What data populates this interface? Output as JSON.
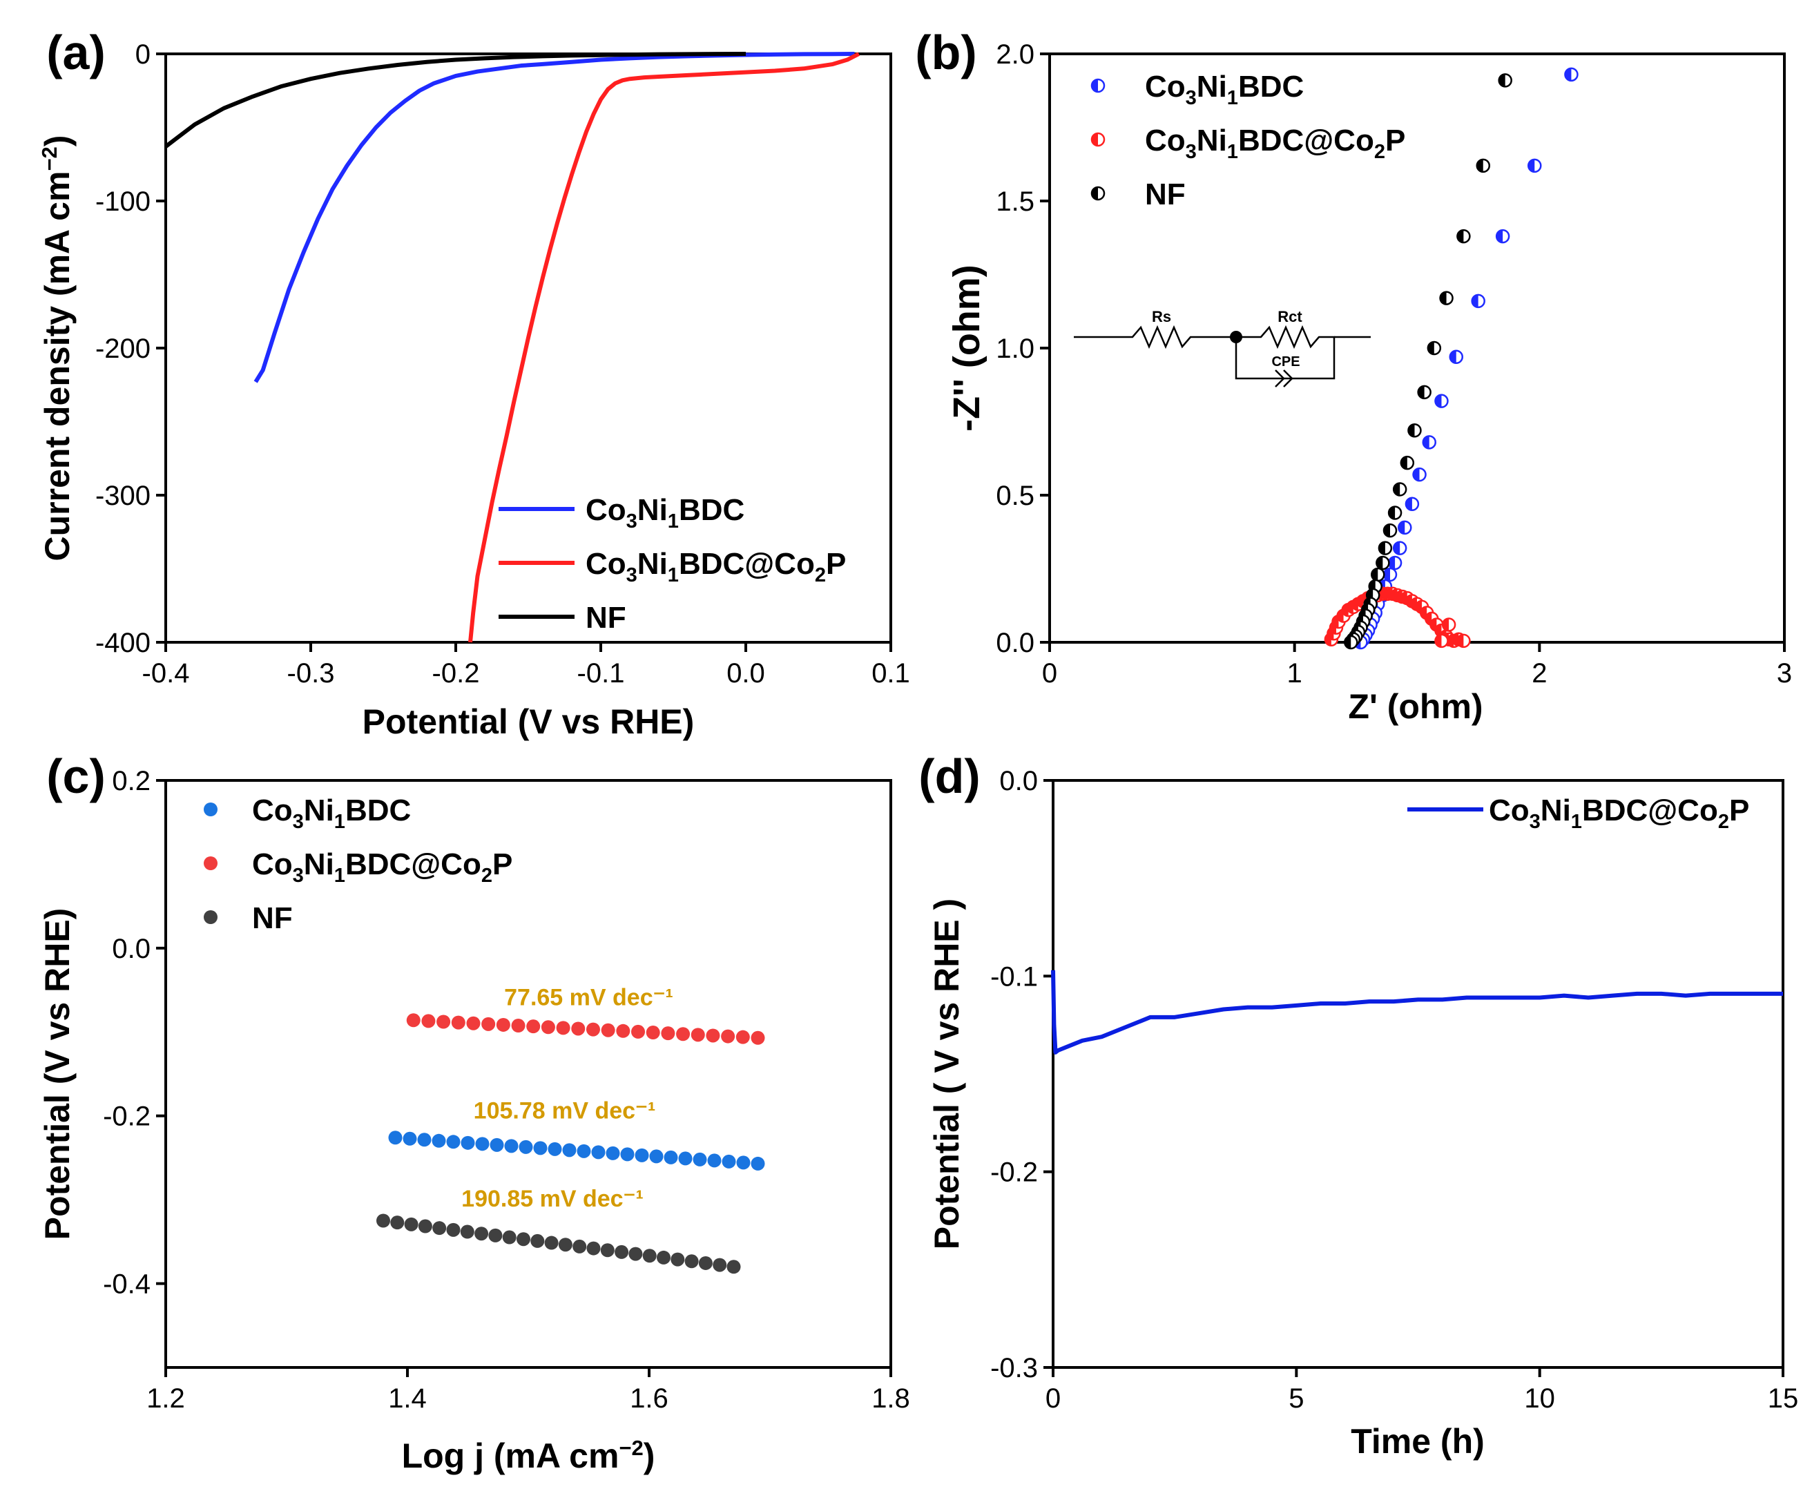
{
  "colors": {
    "blue": "#1f2bff",
    "red": "#ff2020",
    "black": "#000000",
    "tafel_blue": "#1a75e0",
    "tafel_red": "#f03c3c",
    "tafel_gray": "#404040",
    "annotation_gold": "#d49a00",
    "stability_blue": "#0a1fe0"
  },
  "chart_data": [
    {
      "panel_label": "(a)",
      "type": "line",
      "xlabel": "Potential (V vs RHE)",
      "ylabel": "Current density (mA cm⁻²)",
      "xlim": [
        -0.4,
        0.1
      ],
      "ylim": [
        -400,
        0
      ],
      "xticks": [
        "-0.4",
        "-0.3",
        "-0.2",
        "-0.1",
        "0.0",
        "0.1"
      ],
      "yticks": [
        "0",
        "-100",
        "-200",
        "-300",
        "-400"
      ],
      "legend_position": "bottom-right",
      "legend": [
        "Co3Ni1BDC",
        "Co3Ni1BDC@Co2P",
        "NF"
      ],
      "series": [
        {
          "name": "Co3Ni1BDC",
          "color_key": "blue",
          "x": [
            -0.338,
            -0.333,
            -0.325,
            -0.315,
            -0.305,
            -0.295,
            -0.285,
            -0.275,
            -0.265,
            -0.255,
            -0.245,
            -0.235,
            -0.225,
            -0.215,
            -0.2,
            -0.185,
            -0.17,
            -0.155,
            -0.14,
            -0.12,
            -0.1,
            -0.08,
            -0.06,
            -0.04,
            -0.02,
            0.0,
            0.02,
            0.04,
            0.06,
            0.075
          ],
          "y": [
            -223,
            -215,
            -190,
            -160,
            -135,
            -112,
            -92,
            -76,
            -62,
            -50,
            -40,
            -32,
            -25,
            -20,
            -15,
            -12,
            -10,
            -8,
            -7,
            -5.5,
            -4,
            -3,
            -2.2,
            -1.6,
            -1.1,
            -0.7,
            -0.4,
            -0.2,
            -0.1,
            0
          ]
        },
        {
          "name": "Co3Ni1BDC@Co2P",
          "color_key": "red",
          "x": [
            -0.19,
            -0.188,
            -0.185,
            -0.18,
            -0.175,
            -0.17,
            -0.165,
            -0.16,
            -0.155,
            -0.15,
            -0.145,
            -0.14,
            -0.135,
            -0.13,
            -0.125,
            -0.12,
            -0.115,
            -0.11,
            -0.105,
            -0.1,
            -0.095,
            -0.09,
            -0.085,
            -0.08,
            -0.07,
            -0.06,
            -0.04,
            -0.02,
            0.0,
            0.02,
            0.04,
            0.06,
            0.07,
            0.078
          ],
          "y": [
            -400,
            -380,
            -355,
            -330,
            -305,
            -282,
            -260,
            -237,
            -215,
            -193,
            -172,
            -152,
            -133,
            -115,
            -98,
            -82,
            -67,
            -53,
            -41,
            -31,
            -24,
            -20,
            -18,
            -17,
            -16,
            -15.5,
            -14.5,
            -13.5,
            -12.5,
            -11.5,
            -10,
            -7,
            -4,
            0
          ]
        },
        {
          "name": "NF",
          "color_key": "black",
          "x": [
            -0.4,
            -0.38,
            -0.36,
            -0.34,
            -0.32,
            -0.3,
            -0.28,
            -0.26,
            -0.24,
            -0.22,
            -0.2,
            -0.18,
            -0.16,
            -0.14,
            -0.12,
            -0.1,
            -0.08,
            -0.06,
            -0.04,
            -0.02,
            0.0
          ],
          "y": [
            -63,
            -48,
            -37,
            -29,
            -22,
            -17,
            -13,
            -10,
            -7.5,
            -5.5,
            -4,
            -3,
            -2.2,
            -1.6,
            -1.1,
            -0.8,
            -0.5,
            -0.3,
            -0.15,
            -0.05,
            0
          ]
        }
      ]
    },
    {
      "panel_label": "(b)",
      "type": "scatter",
      "xlabel": "Z' (ohm)",
      "ylabel": "-Z'' (ohm)",
      "xlim": [
        0,
        3
      ],
      "ylim": [
        0,
        2.0
      ],
      "xticks": [
        "0",
        "1",
        "2",
        "3"
      ],
      "yticks": [
        "0.0",
        "0.5",
        "1.0",
        "1.5",
        "2.0"
      ],
      "legend_position": "top-left",
      "legend": [
        "Co3Ni1BDC",
        "Co3Ni1BDC@Co2P",
        "NF"
      ],
      "inset_circuit": {
        "labels": [
          "Rs",
          "Rct",
          "CPE"
        ]
      },
      "series": [
        {
          "name": "Co3Ni1BDC",
          "color_key": "blue",
          "x": [
            2.13,
            1.98,
            1.85,
            1.75,
            1.66,
            1.6,
            1.55,
            1.51,
            1.48,
            1.45,
            1.43,
            1.41,
            1.39,
            1.37,
            1.36,
            1.34,
            1.33,
            1.32,
            1.31,
            1.3,
            1.29,
            1.28,
            1.27
          ],
          "y": [
            1.93,
            1.62,
            1.38,
            1.16,
            0.97,
            0.82,
            0.68,
            0.57,
            0.47,
            0.39,
            0.32,
            0.27,
            0.23,
            0.19,
            0.16,
            0.13,
            0.1,
            0.08,
            0.06,
            0.04,
            0.025,
            0.01,
            0.0
          ]
        },
        {
          "name": "Co3Ni1BDC@Co2P",
          "color_key": "red",
          "x": [
            1.15,
            1.16,
            1.17,
            1.18,
            1.2,
            1.22,
            1.24,
            1.26,
            1.28,
            1.3,
            1.32,
            1.34,
            1.36,
            1.38,
            1.4,
            1.42,
            1.44,
            1.46,
            1.48,
            1.5,
            1.52,
            1.54,
            1.56,
            1.58,
            1.6,
            1.62,
            1.63,
            1.65,
            1.67,
            1.69,
            1.6,
            1.63
          ],
          "y": [
            0.01,
            0.03,
            0.05,
            0.07,
            0.09,
            0.11,
            0.12,
            0.13,
            0.14,
            0.15,
            0.155,
            0.16,
            0.165,
            0.165,
            0.165,
            0.16,
            0.155,
            0.15,
            0.14,
            0.13,
            0.12,
            0.1,
            0.08,
            0.06,
            0.04,
            0.02,
            0.01,
            0.005,
            0.01,
            0.005,
            0.005,
            0.06
          ]
        },
        {
          "name": "NF",
          "color_key": "black",
          "x": [
            1.86,
            1.77,
            1.69,
            1.62,
            1.57,
            1.53,
            1.49,
            1.46,
            1.43,
            1.41,
            1.39,
            1.37,
            1.36,
            1.34,
            1.33,
            1.32,
            1.31,
            1.3,
            1.29,
            1.28,
            1.27,
            1.26,
            1.25,
            1.24,
            1.23
          ],
          "y": [
            1.91,
            1.62,
            1.38,
            1.17,
            1.0,
            0.85,
            0.72,
            0.61,
            0.52,
            0.44,
            0.38,
            0.32,
            0.27,
            0.23,
            0.19,
            0.16,
            0.13,
            0.11,
            0.09,
            0.07,
            0.05,
            0.035,
            0.02,
            0.01,
            0.0
          ]
        }
      ]
    },
    {
      "panel_label": "(c)",
      "type": "scatter",
      "xlabel": "Log j (mA cm⁻²)",
      "ylabel": "Potential (V vs RHE)",
      "xlim": [
        1.2,
        1.8
      ],
      "ylim": [
        -0.5,
        0.2
      ],
      "xticks": [
        "1.2",
        "1.4",
        "1.6",
        "1.8"
      ],
      "yticks": [
        "0.2",
        "0.0",
        "-0.2",
        "-0.4"
      ],
      "legend_position": "top-left",
      "legend": [
        "Co3Ni1BDC",
        "Co3Ni1BDC@Co2P",
        "NF"
      ],
      "annotations": [
        {
          "text": "77.65 mV dec⁻¹",
          "x": 1.55,
          "y": -0.068
        },
        {
          "text": "105.78 mV dec⁻¹",
          "x": 1.53,
          "y": -0.203
        },
        {
          "text": "190.85 mV dec⁻¹",
          "x": 1.52,
          "y": -0.308
        }
      ],
      "series": [
        {
          "name": "Co3Ni1BDC",
          "color_key": "tafel_blue",
          "x_start": 1.39,
          "x_end": 1.69,
          "y_start": -0.226,
          "y_end": -0.257,
          "n_points": 26
        },
        {
          "name": "Co3Ni1BDC@Co2P",
          "color_key": "tafel_red",
          "x_start": 1.405,
          "x_end": 1.69,
          "y_start": -0.086,
          "y_end": -0.107,
          "n_points": 24
        },
        {
          "name": "NF",
          "color_key": "tafel_gray",
          "x_start": 1.38,
          "x_end": 1.67,
          "y_start": -0.325,
          "y_end": -0.38,
          "n_points": 26
        }
      ]
    },
    {
      "panel_label": "(d)",
      "type": "line",
      "xlabel": "Time (h)",
      "ylabel": "Potential ( V vs RHE )",
      "xlim": [
        0,
        15
      ],
      "ylim": [
        -0.3,
        0.0
      ],
      "xticks": [
        "0",
        "5",
        "10",
        "15"
      ],
      "yticks": [
        "0.0",
        "-0.1",
        "-0.2",
        "-0.3"
      ],
      "legend_position": "top-right",
      "legend": [
        "Co3Ni1BDC@Co2P"
      ],
      "series": [
        {
          "name": "Co3Ni1BDC@Co2P",
          "color_key": "stability_blue",
          "x": [
            0.0,
            0.02,
            0.05,
            0.1,
            0.3,
            0.6,
            1.0,
            1.5,
            2.0,
            2.5,
            3.0,
            3.5,
            4.0,
            4.5,
            5.0,
            5.5,
            6.0,
            6.5,
            7.0,
            7.5,
            8.0,
            8.5,
            9.0,
            9.5,
            10.0,
            10.5,
            11.0,
            11.5,
            12.0,
            12.5,
            13.0,
            13.5,
            14.0,
            14.5,
            15.0
          ],
          "y": [
            -0.097,
            -0.125,
            -0.139,
            -0.138,
            -0.136,
            -0.133,
            -0.131,
            -0.126,
            -0.121,
            -0.121,
            -0.119,
            -0.117,
            -0.116,
            -0.116,
            -0.115,
            -0.114,
            -0.114,
            -0.113,
            -0.113,
            -0.112,
            -0.112,
            -0.111,
            -0.111,
            -0.111,
            -0.111,
            -0.11,
            -0.111,
            -0.11,
            -0.109,
            -0.109,
            -0.11,
            -0.109,
            -0.109,
            -0.109,
            -0.109
          ]
        }
      ]
    }
  ]
}
